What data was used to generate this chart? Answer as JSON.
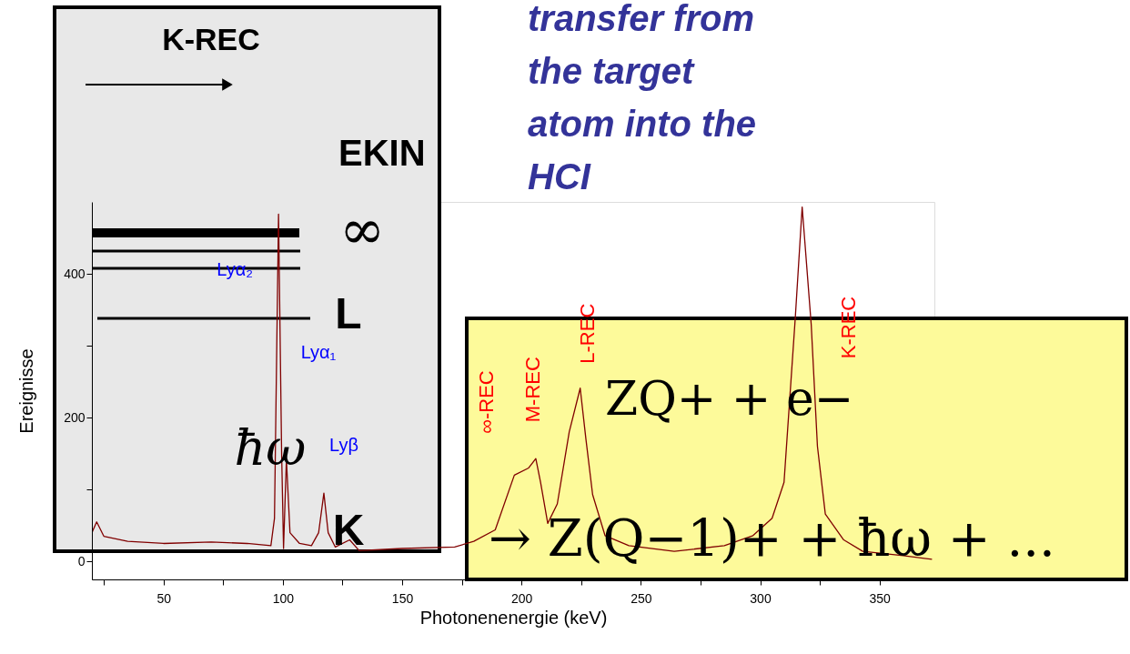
{
  "chart_data": {
    "type": "line",
    "xlabel": "Photonenenergie (keV)",
    "ylabel": "Ereignisse",
    "xlim": [
      20,
      373
    ],
    "ylim": [
      -25,
      500
    ],
    "xticks": [
      {
        "value": 25,
        "label": null
      },
      50,
      {
        "value": 75,
        "label": null
      },
      100,
      {
        "value": 125,
        "label": null
      },
      150,
      {
        "value": 175,
        "label": null
      },
      200,
      {
        "value": 225,
        "label": null
      },
      250,
      {
        "value": 275,
        "label": null
      },
      300,
      {
        "value": 325,
        "label": null
      },
      350
    ],
    "yticks": [
      0,
      {
        "value": 100,
        "label": null
      },
      200,
      {
        "value": 300,
        "label": null
      },
      400
    ],
    "grid": false,
    "legend": false,
    "x": [
      20,
      22,
      25,
      35,
      50,
      70,
      85,
      95,
      96.5,
      98.2,
      99.5,
      100.3,
      101.5,
      103,
      107,
      112,
      115,
      117.2,
      119,
      122,
      128,
      132,
      150,
      172,
      180,
      189,
      197,
      203,
      206,
      208,
      211,
      215,
      220,
      224.6,
      227,
      229.8,
      235,
      245,
      264,
      285,
      297,
      305,
      310,
      314.7,
      317.6,
      321.4,
      324,
      327.3,
      335,
      343,
      360,
      372
    ],
    "series": [
      {
        "color": "#800000",
        "values": [
          40,
          55,
          35,
          28,
          25,
          27,
          25,
          22,
          60,
          483,
          150,
          18,
          142,
          40,
          25,
          22,
          40,
          95,
          40,
          20,
          30,
          15,
          18,
          20,
          28,
          44,
          120,
          130,
          143,
          110,
          53,
          80,
          180,
          241,
          170,
          93,
          36,
          22,
          14,
          22,
          36,
          60,
          110,
          338,
          493,
          329,
          160,
          66,
          30,
          14,
          8,
          3
        ]
      }
    ],
    "annotations": [
      "transfer from\nthe target\natom into the\nHCI",
      "K-REC",
      "EKIN",
      "∞",
      "L",
      "K",
      "ħω",
      "ZQ+ + e−",
      "→ Z(Q−1)+ + ħω + ...",
      "Lyα₁",
      "∞-REC",
      "K-REC",
      {
        "text": "Lyα₂",
        "x": 98.2,
        "y": 483
      },
      {
        "text": "Lyβ",
        "x": 117.2,
        "y": 95
      },
      {
        "text": "M-REC",
        "x": 206,
        "y": 143
      },
      {
        "text": "L-REC",
        "x": 224.6,
        "y": 241
      }
    ]
  }
}
